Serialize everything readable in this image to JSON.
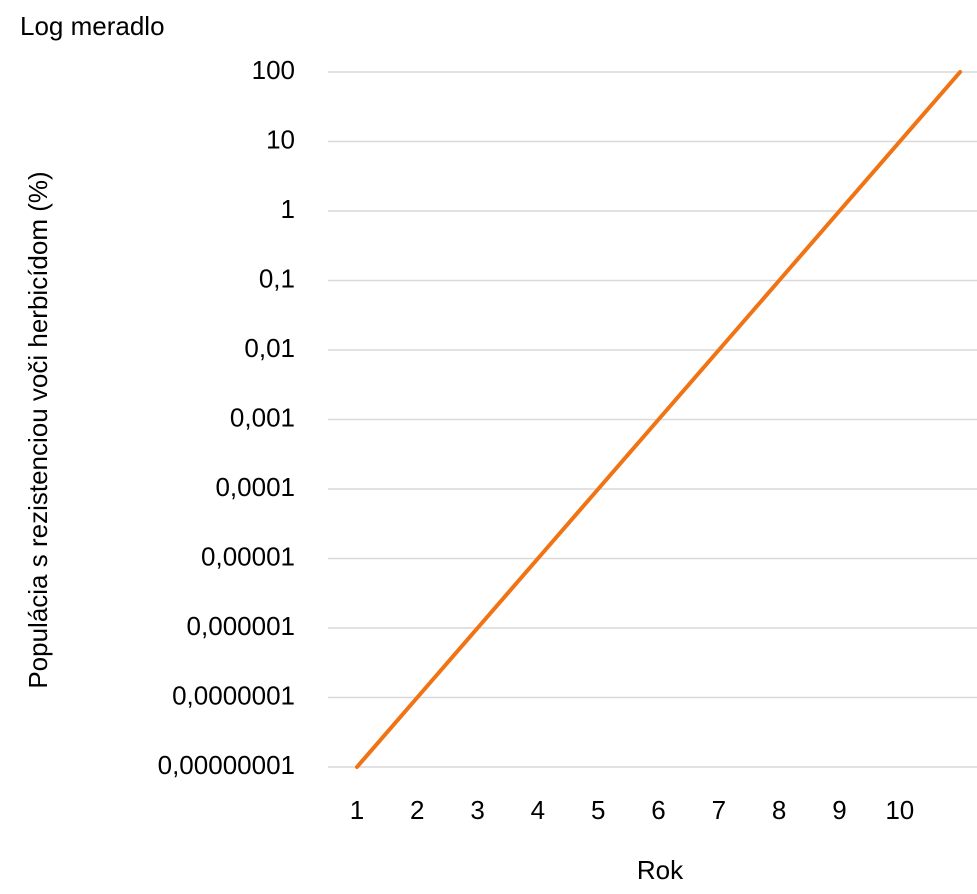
{
  "chart_data": {
    "type": "line",
    "annotation": "Log meradlo",
    "x_label": "Rok",
    "y_label": "Populácia s rezistenciou voči herbicídom (%)",
    "x": [
      1,
      2,
      3,
      4,
      5,
      6,
      7,
      8,
      9,
      10,
      11
    ],
    "series": [
      {
        "color": "#f07314",
        "values": [
          1e-08,
          1e-07,
          1e-06,
          1e-05,
          0.0001,
          0.001,
          0.01,
          0.1,
          1,
          10,
          100
        ]
      }
    ],
    "xlim": [
      0.52,
      11.28
    ],
    "xticks": [
      1,
      2,
      3,
      4,
      5,
      6,
      7,
      8,
      9,
      10
    ],
    "ylim": [
      1e-08,
      100
    ],
    "ylog": true,
    "yticks": [
      {
        "value": 1e-08,
        "label": "0,00000001"
      },
      {
        "value": 1e-07,
        "label": "0,0000001"
      },
      {
        "value": 1e-06,
        "label": "0,000001"
      },
      {
        "value": 1e-05,
        "label": "0,00001"
      },
      {
        "value": 0.0001,
        "label": "0,0001"
      },
      {
        "value": 0.001,
        "label": "0,001"
      },
      {
        "value": 0.01,
        "label": "0,01"
      },
      {
        "value": 0.1,
        "label": "0,1"
      },
      1,
      10,
      100
    ],
    "grid": true
  }
}
